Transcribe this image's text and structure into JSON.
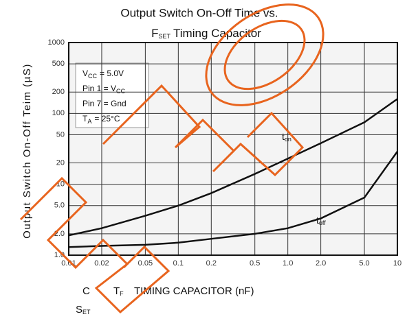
{
  "chart_data": {
    "type": "line",
    "title": "Output Switch On-Off Time vs.",
    "title_line2": {
      "text": "F",
      "sub": "SET",
      "rest": "Timing Capacitor"
    },
    "y_label": "Output Switch On-Off Teim (µS)",
    "x_label_parts": [
      {
        "text": "C"
      },
      {
        "text": "T",
        "sub": "F"
      },
      {
        "text": "TIMING CAPACITOR (nF)"
      },
      {
        "text": "S",
        "sub": "ET"
      }
    ],
    "annotations": [
      {
        "text": "V",
        "sub": "CC",
        "rest": "= 5.0V"
      },
      {
        "text": "Pin 1 = V",
        "sub": "CC",
        "rest": ""
      },
      {
        "text": "Pin 7 = Gnd",
        "sub": "",
        "rest": ""
      },
      {
        "text": "T",
        "sub": "A",
        "rest": "= 25°C"
      }
    ],
    "x": [
      0.01,
      0.02,
      0.05,
      0.1,
      0.2,
      0.5,
      1,
      2,
      5,
      10
    ],
    "series": [
      {
        "name": "t",
        "name_sub": "on",
        "color": "#111111",
        "values": [
          1.9,
          2.4,
          3.6,
          5,
          7.5,
          14,
          23,
          38,
          75,
          160
        ]
      },
      {
        "name": "t",
        "name_sub": "off",
        "color": "#111111",
        "values": [
          1.3,
          1.35,
          1.4,
          1.5,
          1.7,
          2,
          2.4,
          3.3,
          6.5,
          29
        ]
      }
    ],
    "xlim": [
      0.01,
      10
    ],
    "ylim": [
      1,
      1000
    ],
    "log_x": true,
    "log_y": true,
    "grid": true,
    "xticks": [
      0.01,
      0.02,
      0.05,
      0.1,
      0.2,
      0.5,
      {
        "value": 1,
        "label": "1.0"
      },
      {
        "value": 2,
        "label": "2.0"
      },
      {
        "value": 5,
        "label": "5.0"
      },
      10
    ],
    "yticks": [
      {
        "value": 1,
        "label": "1.0"
      },
      {
        "value": 2,
        "label": "2.0"
      },
      {
        "value": 5,
        "label": "5.0"
      },
      10,
      20,
      50,
      100,
      200,
      500,
      1000
    ]
  }
}
